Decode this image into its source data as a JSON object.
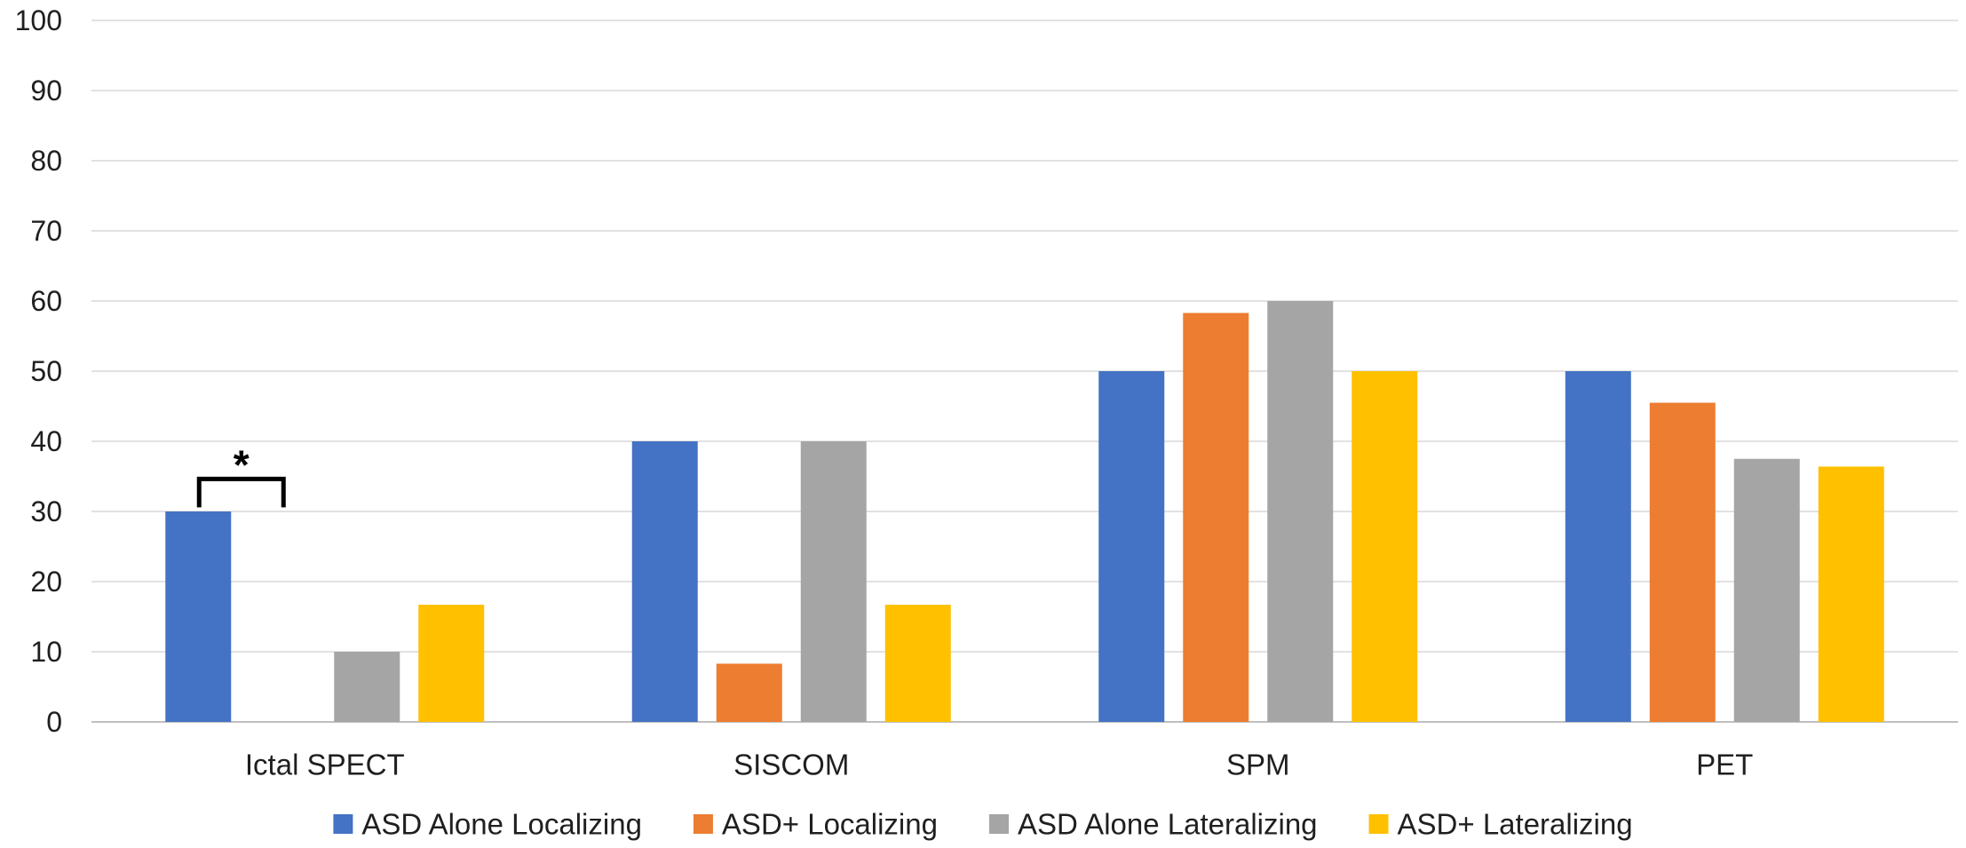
{
  "chart_data": {
    "type": "bar",
    "title": "",
    "xlabel": "",
    "ylabel": "",
    "categories": [
      "Ictal SPECT",
      "SISCOM",
      "SPM",
      "PET"
    ],
    "ylim": [
      0,
      100
    ],
    "yticks": [
      0,
      10,
      20,
      30,
      40,
      50,
      60,
      70,
      80,
      90,
      100
    ],
    "grid": true,
    "legend_position": "bottom",
    "series": [
      {
        "name": "ASD Alone Localizing",
        "color": "#4472C4",
        "values": [
          30,
          40,
          50,
          50
        ]
      },
      {
        "name": "ASD+ Localizing",
        "color": "#ED7D31",
        "values": [
          0,
          8.3,
          58.3,
          45.5
        ]
      },
      {
        "name": "ASD Alone Lateralizing",
        "color": "#A5A5A5",
        "values": [
          10,
          40,
          60,
          37.5
        ]
      },
      {
        "name": "ASD+ Lateralizing",
        "color": "#FFC000",
        "values": [
          16.7,
          16.7,
          50,
          36.4
        ]
      }
    ],
    "annotations": [
      {
        "text": "*",
        "category": "Ictal SPECT",
        "series_from": 0,
        "series_to": 1,
        "value": 34
      }
    ]
  }
}
